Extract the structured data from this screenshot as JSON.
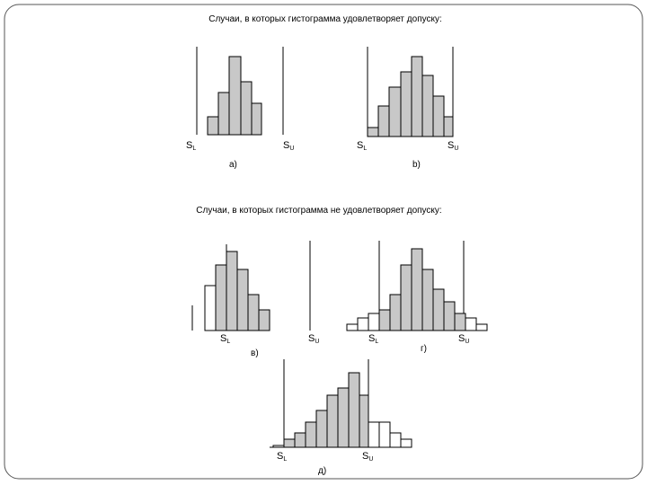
{
  "header": {
    "title_ok": "Случаи, в которых гистограмма удовлетворяет допуску:",
    "title_not_ok": "Случаи, в которых гистограмма не удовлетворяет допуску:"
  },
  "panels": [
    {
      "label": "а)",
      "lower": "S",
      "lower_sub": "L",
      "upper": "S",
      "upper_sub": "U"
    },
    {
      "label": "b)",
      "lower": "S",
      "lower_sub": "L",
      "upper": "S",
      "upper_sub": "U"
    },
    {
      "label": "в)",
      "lower": "S",
      "lower_sub": "L",
      "upper": "S",
      "upper_sub": "U"
    },
    {
      "label": "г)",
      "lower": "S",
      "lower_sub": "L",
      "upper": "S",
      "upper_sub": "U"
    },
    {
      "label": "д)",
      "lower": "S",
      "lower_sub": "L",
      "upper": "S",
      "upper_sub": "U"
    }
  ]
}
